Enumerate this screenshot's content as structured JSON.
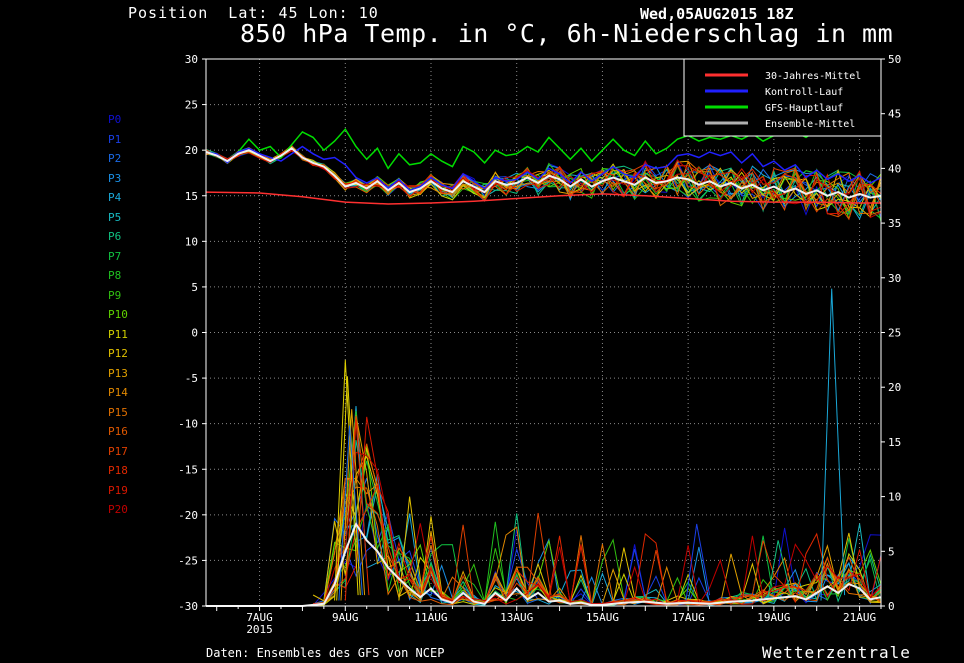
{
  "header": {
    "position": "Position  Lat: 45 Lon: 10",
    "datetime": "Wed,05AUG2015 18Z",
    "title": "850 hPa Temp. in °C, 6h-Niederschlag in mm"
  },
  "footer": {
    "source": "Daten: Ensembles des GFS von NCEP",
    "brand": "Wetterzentrale"
  },
  "members": [
    "P0",
    "P1",
    "P2",
    "P3",
    "P4",
    "P5",
    "P6",
    "P7",
    "P8",
    "P9",
    "P10",
    "P11",
    "P12",
    "P13",
    "P14",
    "P15",
    "P16",
    "P17",
    "P18",
    "P19",
    "P20"
  ],
  "member_colors": [
    "#1010d0",
    "#1a3fe6",
    "#1a6ae6",
    "#1a90e6",
    "#1aa8d8",
    "#17b8c0",
    "#10c080",
    "#10c040",
    "#20c020",
    "#30c010",
    "#60d000",
    "#d0d000",
    "#e0c000",
    "#e0a000",
    "#e08800",
    "#e07000",
    "#e05800",
    "#e04000",
    "#e02800",
    "#d81800",
    "#c00000"
  ],
  "legend": {
    "entries": [
      {
        "label": "30-Jahres-Mittel",
        "color": "#ff3030"
      },
      {
        "label": "Kontroll-Lauf",
        "color": "#2020ff"
      },
      {
        "label": "GFS-Hauptlauf",
        "color": "#00dd00"
      },
      {
        "label": "Ensemble-Mittel",
        "color": "#b0b0b0"
      }
    ]
  },
  "chart_data": {
    "type": "line",
    "x_labels": [
      "7AUG",
      "9AUG",
      "11AUG",
      "13AUG",
      "15AUG",
      "17AUG",
      "19AUG",
      "21AUG"
    ],
    "x_year_label": "2015",
    "x_range_days": [
      5.75,
      21.5
    ],
    "left_axis": {
      "ylim": [
        -30,
        30
      ],
      "ticks": [
        30,
        25,
        20,
        15,
        10,
        5,
        0,
        -5,
        -10,
        -15,
        -20,
        -25,
        -30
      ]
    },
    "right_axis": {
      "ylim": [
        0,
        50
      ],
      "ticks": [
        50,
        45,
        40,
        35,
        30,
        25,
        20,
        15,
        10,
        5,
        0
      ]
    },
    "grid": true,
    "legend_position": "top-right",
    "series": [
      {
        "name": "30-Jahres-Mittel",
        "axis": "left",
        "color": "#ff3030",
        "x": [
          5.75,
          7,
          8,
          9,
          10,
          11,
          12,
          13,
          14,
          15,
          16,
          17,
          18,
          19,
          20,
          21,
          21.5
        ],
        "y": [
          15.4,
          15.3,
          14.9,
          14.3,
          14.1,
          14.2,
          14.4,
          14.7,
          15.0,
          15.2,
          15.0,
          14.7,
          14.4,
          14.3,
          14.3,
          14.2,
          14.2
        ]
      },
      {
        "name": "GFS-Hauptlauf",
        "axis": "left",
        "color": "#00dd00",
        "x": [
          5.75,
          6,
          6.25,
          6.5,
          6.75,
          7,
          7.25,
          7.5,
          7.75,
          8,
          8.25,
          8.5,
          8.75,
          9,
          9.25,
          9.5,
          9.75,
          10,
          10.25,
          10.5,
          10.75,
          11,
          11.25,
          11.5,
          11.75,
          12,
          12.25,
          12.5,
          12.75,
          13,
          13.25,
          13.5,
          13.75,
          14,
          14.25,
          14.5,
          14.75,
          15,
          15.25,
          15.5,
          15.75,
          16,
          16.25,
          16.5,
          16.75,
          17,
          17.25,
          17.5,
          17.75,
          18,
          18.25,
          18.5,
          18.75,
          19,
          19.25,
          19.5,
          19.75,
          20,
          20.25,
          20.5,
          20.75,
          21,
          21.25,
          21.5
        ],
        "y": [
          19.8,
          19.6,
          18.6,
          19.8,
          21.2,
          20.0,
          20.4,
          19.2,
          20.6,
          22.0,
          21.4,
          20.0,
          21.0,
          22.3,
          20.4,
          19.0,
          20.2,
          18.0,
          19.6,
          18.4,
          18.6,
          19.6,
          18.8,
          18.2,
          20.4,
          19.8,
          18.6,
          20.0,
          19.4,
          19.6,
          20.4,
          19.8,
          21.4,
          20.2,
          19.0,
          20.2,
          18.8,
          20.0,
          21.2,
          20.0,
          19.4,
          21.0,
          19.6,
          20.2,
          21.2,
          21.6,
          21.0,
          21.4,
          21.2,
          21.6,
          21.2,
          21.8,
          21.0,
          21.6,
          21.8,
          22.0,
          21.4,
          22.2,
          21.6,
          22.0,
          21.8,
          22.2,
          21.8,
          22.4
        ]
      },
      {
        "name": "Kontroll-Lauf",
        "axis": "left",
        "color": "#2020ff",
        "x": [
          5.75,
          6,
          6.25,
          6.5,
          6.75,
          7,
          7.25,
          7.5,
          7.75,
          8,
          8.25,
          8.5,
          8.75,
          9,
          9.25,
          9.5,
          9.75,
          10,
          10.25,
          10.5,
          10.75,
          11,
          11.25,
          11.5,
          11.75,
          12,
          12.25,
          12.5,
          12.75,
          13,
          13.25,
          13.5,
          13.75,
          14,
          14.25,
          14.5,
          14.75,
          15,
          15.25,
          15.5,
          15.75,
          16,
          16.25,
          16.5,
          16.75,
          17,
          17.25,
          17.5,
          17.75,
          18,
          18.25,
          18.5,
          18.75,
          19,
          19.25,
          19.5,
          19.75,
          20,
          20.25,
          20.5,
          20.75,
          21,
          21.25,
          21.5
        ],
        "y": [
          19.8,
          19.6,
          18.6,
          19.8,
          20.2,
          19.6,
          19.2,
          18.8,
          19.6,
          20.4,
          19.6,
          19.0,
          19.2,
          18.4,
          17.0,
          16.4,
          17.0,
          15.8,
          16.8,
          15.6,
          16.0,
          17.0,
          16.2,
          15.8,
          17.4,
          16.6,
          15.8,
          17.0,
          16.6,
          16.8,
          17.6,
          16.8,
          18.0,
          17.4,
          16.4,
          17.6,
          16.6,
          17.4,
          18.2,
          17.4,
          17.0,
          18.4,
          18.0,
          18.2,
          19.4,
          19.6,
          19.2,
          19.8,
          19.4,
          19.8,
          18.6,
          19.6,
          18.2,
          18.8,
          17.8,
          18.4,
          17.0,
          17.8,
          16.8,
          17.4,
          16.6,
          17.2,
          16.4,
          17.0
        ]
      },
      {
        "name": "Ensemble-Mittel",
        "axis": "left",
        "color": "#f0f0f0",
        "x": [
          5.75,
          6,
          6.25,
          6.5,
          6.75,
          7,
          7.25,
          7.5,
          7.75,
          8,
          8.25,
          8.5,
          8.75,
          9,
          9.25,
          9.5,
          9.75,
          10,
          10.25,
          10.5,
          10.75,
          11,
          11.25,
          11.5,
          11.75,
          12,
          12.25,
          12.5,
          12.75,
          13,
          13.25,
          13.5,
          13.75,
          14,
          14.25,
          14.5,
          14.75,
          15,
          15.25,
          15.5,
          15.75,
          16,
          16.25,
          16.5,
          16.75,
          17,
          17.25,
          17.5,
          17.75,
          18,
          18.25,
          18.5,
          18.75,
          19,
          19.25,
          19.5,
          19.75,
          20,
          20.25,
          20.5,
          20.75,
          21,
          21.25,
          21.5
        ],
        "y": [
          19.8,
          19.4,
          18.8,
          19.6,
          20.0,
          19.4,
          18.8,
          19.4,
          20.2,
          19.2,
          18.6,
          18.2,
          17.2,
          16.0,
          16.4,
          15.8,
          16.6,
          15.6,
          16.4,
          15.4,
          15.8,
          16.6,
          15.8,
          15.4,
          16.6,
          16.0,
          15.4,
          16.6,
          16.2,
          16.4,
          17.0,
          16.4,
          17.2,
          16.8,
          16.0,
          16.8,
          16.0,
          16.6,
          17.0,
          16.6,
          16.2,
          17.0,
          16.4,
          16.6,
          17.0,
          16.8,
          16.2,
          16.6,
          16.0,
          16.4,
          15.8,
          16.2,
          15.6,
          16.0,
          15.4,
          15.8,
          15.2,
          15.6,
          15.0,
          15.4,
          14.8,
          15.2,
          14.8,
          15.0
        ]
      },
      {
        "name": "Ensemble-Mittel",
        "axis": "right",
        "color": "#f0f0f0",
        "x": [
          5.75,
          7,
          8,
          8.5,
          8.75,
          9,
          9.25,
          9.5,
          9.75,
          10,
          10.25,
          10.5,
          10.75,
          11,
          11.25,
          11.5,
          11.75,
          12,
          12.25,
          12.5,
          12.75,
          13,
          13.25,
          13.5,
          13.75,
          14,
          14.25,
          14.5,
          14.75,
          15,
          15.5,
          16,
          16.5,
          17,
          17.5,
          18,
          18.5,
          19,
          19.5,
          19.75,
          20,
          20.25,
          20.5,
          20.75,
          21,
          21.25,
          21.5
        ],
        "y": [
          0,
          0,
          0,
          0.2,
          2.0,
          5.0,
          7.5,
          6.0,
          5.0,
          3.5,
          2.5,
          1.6,
          0.8,
          1.6,
          0.6,
          0.3,
          1.2,
          0.4,
          0.2,
          1.2,
          0.5,
          1.6,
          0.6,
          1.2,
          0.4,
          0.5,
          0.2,
          0.3,
          0.1,
          0.1,
          0.3,
          0.4,
          0.2,
          0.3,
          0.2,
          0.4,
          0.5,
          0.7,
          0.9,
          0.6,
          1.2,
          1.8,
          1.2,
          2.0,
          1.6,
          0.6,
          0.8
        ]
      }
    ],
    "member_precip_peaks": {
      "x_days": [
        9.0,
        9.05,
        9.15,
        9.25,
        9.1,
        20.35,
        10.5,
        13.5,
        17.2,
        19.1
      ],
      "y_mm": [
        22.5,
        21.0,
        18.0,
        17.0,
        16.5,
        29.0,
        10.0,
        8.5,
        7.5,
        6.0
      ]
    }
  }
}
